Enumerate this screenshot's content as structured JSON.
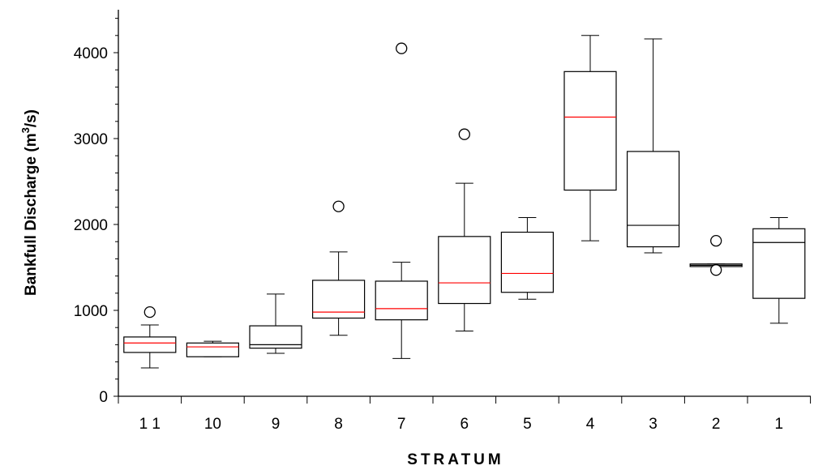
{
  "chart_data": {
    "type": "box",
    "title": "",
    "xlabel": "STRATUM",
    "ylabel_text": "Bankfull Discharge (m",
    "ylabel_sup": "3",
    "ylabel_tail": "/s)",
    "ylim": [
      0,
      4400
    ],
    "yticks": [
      0,
      1000,
      2000,
      3000,
      4000
    ],
    "ytick_labels": [
      "0",
      "1000",
      "2000",
      "3000",
      "4000"
    ],
    "y_minor_step": 200,
    "grid": false,
    "median_colors": {
      "red": "#ff0000",
      "black": "#000000"
    },
    "boxes": [
      {
        "label": "1 1",
        "min": 330,
        "q1": 510,
        "median": 620,
        "q3": 690,
        "max": 830,
        "median_color": "red",
        "outliers": [
          980
        ]
      },
      {
        "label": "10",
        "min": 460,
        "q1": 460,
        "median": 575,
        "q3": 620,
        "max": 640,
        "median_color": "red",
        "outliers": []
      },
      {
        "label": "9",
        "min": 500,
        "q1": 560,
        "median": 600,
        "q3": 820,
        "max": 1190,
        "median_color": "black",
        "outliers": []
      },
      {
        "label": "8",
        "min": 710,
        "q1": 910,
        "median": 980,
        "q3": 1350,
        "max": 1680,
        "median_color": "red",
        "outliers": [
          2210
        ]
      },
      {
        "label": "7",
        "min": 440,
        "q1": 890,
        "median": 1020,
        "q3": 1340,
        "max": 1560,
        "median_color": "red",
        "outliers": [
          4050
        ]
      },
      {
        "label": "6",
        "min": 760,
        "q1": 1080,
        "median": 1320,
        "q3": 1860,
        "max": 2480,
        "median_color": "red",
        "outliers": [
          3050
        ]
      },
      {
        "label": "5",
        "min": 1130,
        "q1": 1210,
        "median": 1430,
        "q3": 1910,
        "max": 2080,
        "median_color": "red",
        "outliers": []
      },
      {
        "label": "4",
        "min": 1810,
        "q1": 2400,
        "median": 3250,
        "q3": 3780,
        "max": 4200,
        "median_color": "red",
        "outliers": []
      },
      {
        "label": "3",
        "min": 1670,
        "q1": 1740,
        "median": 1990,
        "q3": 2850,
        "max": 4160,
        "median_color": "black",
        "outliers": []
      },
      {
        "label": "2",
        "min": 1510,
        "q1": 1510,
        "median": 1525,
        "q3": 1540,
        "max": 1540,
        "median_color": "black",
        "outliers": [
          1810,
          1470
        ]
      },
      {
        "label": "1",
        "min": 850,
        "q1": 1140,
        "median": 1790,
        "q3": 1950,
        "max": 2080,
        "median_color": "black",
        "outliers": []
      }
    ]
  }
}
